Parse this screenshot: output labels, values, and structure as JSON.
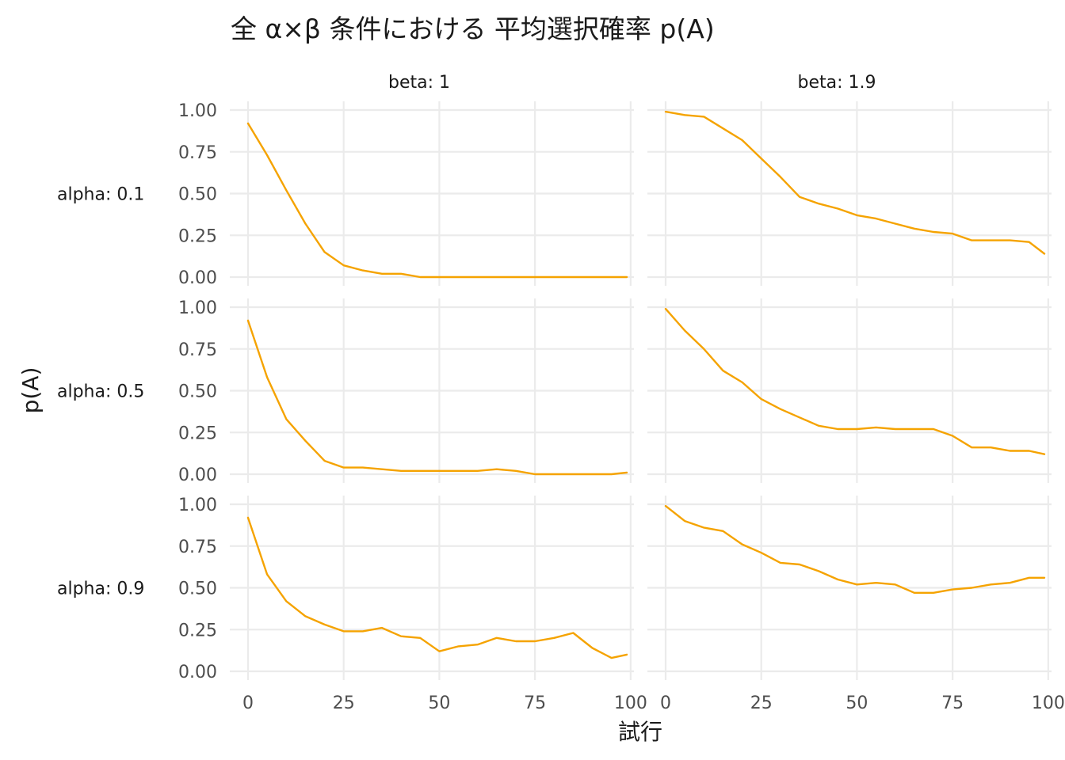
{
  "chart_data": {
    "type": "line",
    "title": "全 α×β 条件における 平均選択確率 p(A)",
    "xlabel": "試行",
    "ylabel": "p(A)",
    "xlim": [
      0,
      99
    ],
    "ylim": [
      0,
      1
    ],
    "x_ticks": [
      0,
      25,
      50,
      75,
      100
    ],
    "x_tick_labels": [
      "0",
      "25",
      "50",
      "75",
      "100"
    ],
    "y_ticks": [
      0,
      0.25,
      0.5,
      0.75,
      1.0
    ],
    "y_tick_labels": [
      "0.00",
      "0.25",
      "0.50",
      "0.75",
      "1.00"
    ],
    "facet_columns": [
      "beta: 1",
      "beta: 1.9"
    ],
    "facet_rows": [
      "alpha: 0.1",
      "alpha: 0.5",
      "alpha: 0.9"
    ],
    "line_color": "#F5A300",
    "grid": true,
    "legend": "none",
    "x": [
      0,
      5,
      10,
      15,
      20,
      25,
      30,
      35,
      40,
      45,
      50,
      55,
      60,
      65,
      70,
      75,
      80,
      85,
      90,
      95,
      99
    ],
    "panels": [
      {
        "row": "alpha: 0.1",
        "col": "beta: 1",
        "values": [
          0.92,
          0.73,
          0.52,
          0.32,
          0.15,
          0.07,
          0.04,
          0.02,
          0.02,
          0.0,
          0.0,
          0.0,
          0.0,
          0.0,
          0.0,
          0.0,
          0.0,
          0.0,
          0.0,
          0.0,
          0.0
        ]
      },
      {
        "row": "alpha: 0.1",
        "col": "beta: 1.9",
        "values": [
          0.99,
          0.97,
          0.96,
          0.89,
          0.82,
          0.71,
          0.6,
          0.48,
          0.44,
          0.41,
          0.37,
          0.35,
          0.32,
          0.29,
          0.27,
          0.26,
          0.22,
          0.22,
          0.22,
          0.21,
          0.14
        ]
      },
      {
        "row": "alpha: 0.5",
        "col": "beta: 1",
        "values": [
          0.92,
          0.58,
          0.33,
          0.2,
          0.08,
          0.04,
          0.04,
          0.03,
          0.02,
          0.02,
          0.02,
          0.02,
          0.02,
          0.03,
          0.02,
          0.0,
          0.0,
          0.0,
          0.0,
          0.0,
          0.01
        ]
      },
      {
        "row": "alpha: 0.5",
        "col": "beta: 1.9",
        "values": [
          0.99,
          0.86,
          0.75,
          0.62,
          0.55,
          0.45,
          0.39,
          0.34,
          0.29,
          0.27,
          0.27,
          0.28,
          0.27,
          0.27,
          0.27,
          0.23,
          0.16,
          0.16,
          0.14,
          0.14,
          0.12
        ]
      },
      {
        "row": "alpha: 0.9",
        "col": "beta: 1",
        "values": [
          0.92,
          0.58,
          0.42,
          0.33,
          0.28,
          0.24,
          0.24,
          0.26,
          0.21,
          0.2,
          0.12,
          0.15,
          0.16,
          0.2,
          0.18,
          0.18,
          0.2,
          0.23,
          0.14,
          0.08,
          0.1
        ]
      },
      {
        "row": "alpha: 0.9",
        "col": "beta: 1.9",
        "values": [
          0.99,
          0.9,
          0.86,
          0.84,
          0.76,
          0.71,
          0.65,
          0.64,
          0.6,
          0.55,
          0.52,
          0.53,
          0.52,
          0.47,
          0.47,
          0.49,
          0.5,
          0.52,
          0.53,
          0.56,
          0.56
        ]
      }
    ]
  }
}
